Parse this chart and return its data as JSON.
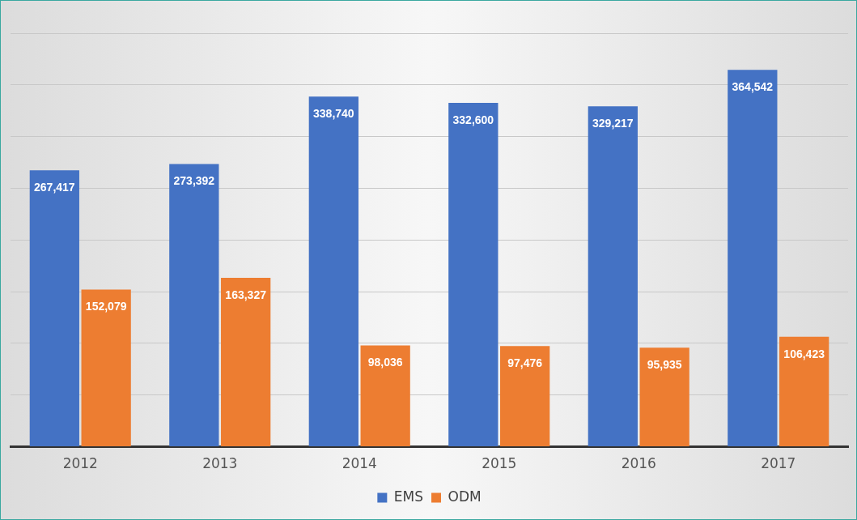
{
  "chart_data": {
    "type": "bar",
    "categories": [
      "2012",
      "2013",
      "2014",
      "2015",
      "2016",
      "2017"
    ],
    "series": [
      {
        "name": "EMS",
        "color": "#4472c4",
        "values": [
          267417,
          273392,
          338740,
          332600,
          329217,
          364542
        ],
        "value_labels": [
          "267,417",
          "273,392",
          "338,740",
          "332,600",
          "329,217",
          "364,542"
        ]
      },
      {
        "name": "ODM",
        "color": "#ed7d31",
        "values": [
          152079,
          163327,
          98036,
          97476,
          95935,
          106423
        ],
        "value_labels": [
          "152,079",
          "163,327",
          "98,036",
          "97,476",
          "95,935",
          "106,423"
        ]
      }
    ],
    "grid": "y",
    "legend": "bottom",
    "tick_labels": "x"
  }
}
